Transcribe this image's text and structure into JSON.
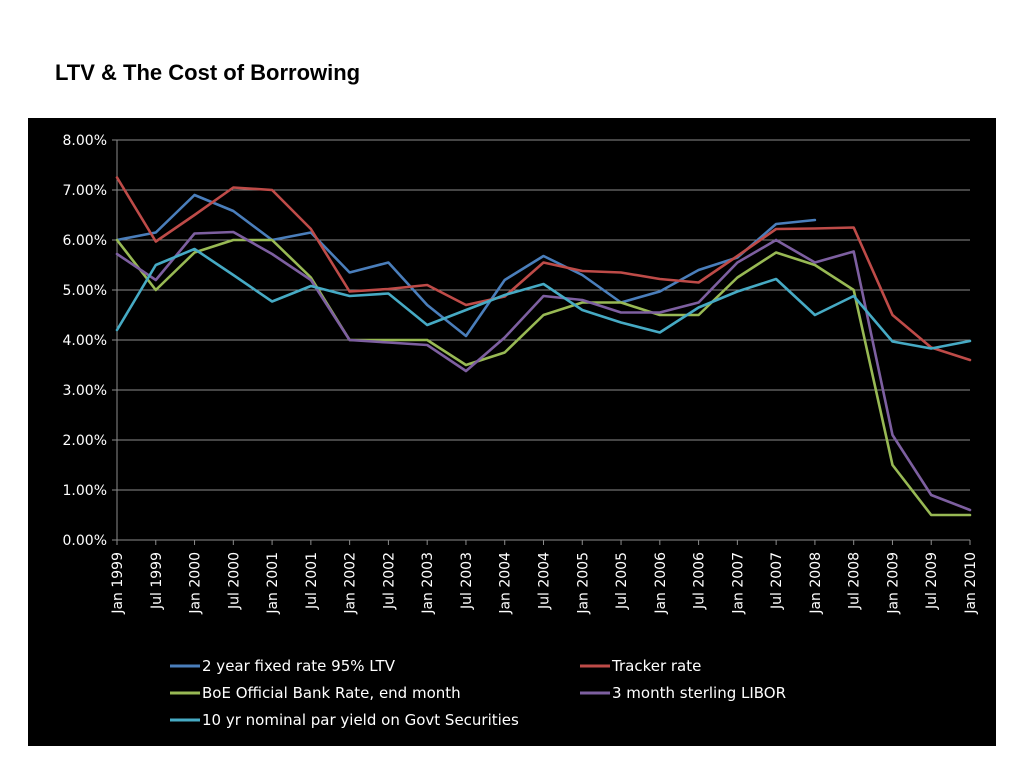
{
  "page": {
    "title": "LTV & The Cost of Borrowing"
  },
  "chart_data": {
    "type": "line",
    "title": "",
    "xlabel": "",
    "ylabel": "",
    "ylim": [
      0,
      8
    ],
    "y_ticks": [
      "0.00%",
      "1.00%",
      "2.00%",
      "3.00%",
      "4.00%",
      "5.00%",
      "6.00%",
      "7.00%",
      "8.00%"
    ],
    "grid": true,
    "legend_position": "bottom",
    "categories": [
      "Jan 1999",
      "Jul 1999",
      "Jan 2000",
      "Jul 2000",
      "Jan 2001",
      "Jul 2001",
      "Jan 2002",
      "Jul 2002",
      "Jan 2003",
      "Jul 2003",
      "Jan 2004",
      "Jul 2004",
      "Jan 2005",
      "Jul 2005",
      "Jan 2006",
      "Jul 2006",
      "Jan 2007",
      "Jul 2007",
      "Jan 2008",
      "Jul 2008",
      "Jan 2009",
      "Jul 2009",
      "Jan 2010"
    ],
    "series": [
      {
        "name": "2 year fixed rate 95% LTV",
        "color": "#4a7ebb",
        "values": [
          6.0,
          6.15,
          6.9,
          6.58,
          6.0,
          6.15,
          5.35,
          5.55,
          4.7,
          4.08,
          5.2,
          5.68,
          5.3,
          4.75,
          4.97,
          5.4,
          5.65,
          6.32,
          6.4,
          null,
          null,
          null,
          null
        ]
      },
      {
        "name": "Tracker rate",
        "color": "#be4b48",
        "values": [
          7.25,
          5.97,
          6.5,
          7.05,
          7.0,
          6.22,
          4.97,
          5.02,
          5.1,
          4.7,
          4.87,
          5.55,
          5.38,
          5.35,
          5.22,
          5.15,
          5.68,
          6.22,
          6.23,
          6.25,
          4.5,
          3.85,
          3.6
        ]
      },
      {
        "name": "BoE Official Bank Rate, end month",
        "color": "#98b954",
        "values": [
          6.0,
          5.0,
          5.75,
          6.0,
          6.0,
          5.25,
          4.0,
          4.0,
          4.0,
          3.5,
          3.75,
          4.5,
          4.75,
          4.75,
          4.5,
          4.5,
          5.25,
          5.75,
          5.5,
          5.0,
          1.5,
          0.5,
          0.5
        ]
      },
      {
        "name": "3 month sterling LIBOR",
        "color": "#7d5fa0",
        "values": [
          5.72,
          5.2,
          6.13,
          6.16,
          5.72,
          5.2,
          4.0,
          3.95,
          3.9,
          3.38,
          4.05,
          4.88,
          4.8,
          4.55,
          4.55,
          4.75,
          5.55,
          6.0,
          5.55,
          5.77,
          2.1,
          0.9,
          0.6
        ]
      },
      {
        "name": "10 yr nominal par yield on Govt Securities",
        "color": "#46aac4",
        "values": [
          4.2,
          5.5,
          5.82,
          5.3,
          4.77,
          5.08,
          4.88,
          4.93,
          4.3,
          4.6,
          4.9,
          5.12,
          4.6,
          4.35,
          4.15,
          4.65,
          4.97,
          5.22,
          4.5,
          4.88,
          3.97,
          3.83,
          3.98
        ]
      }
    ]
  }
}
